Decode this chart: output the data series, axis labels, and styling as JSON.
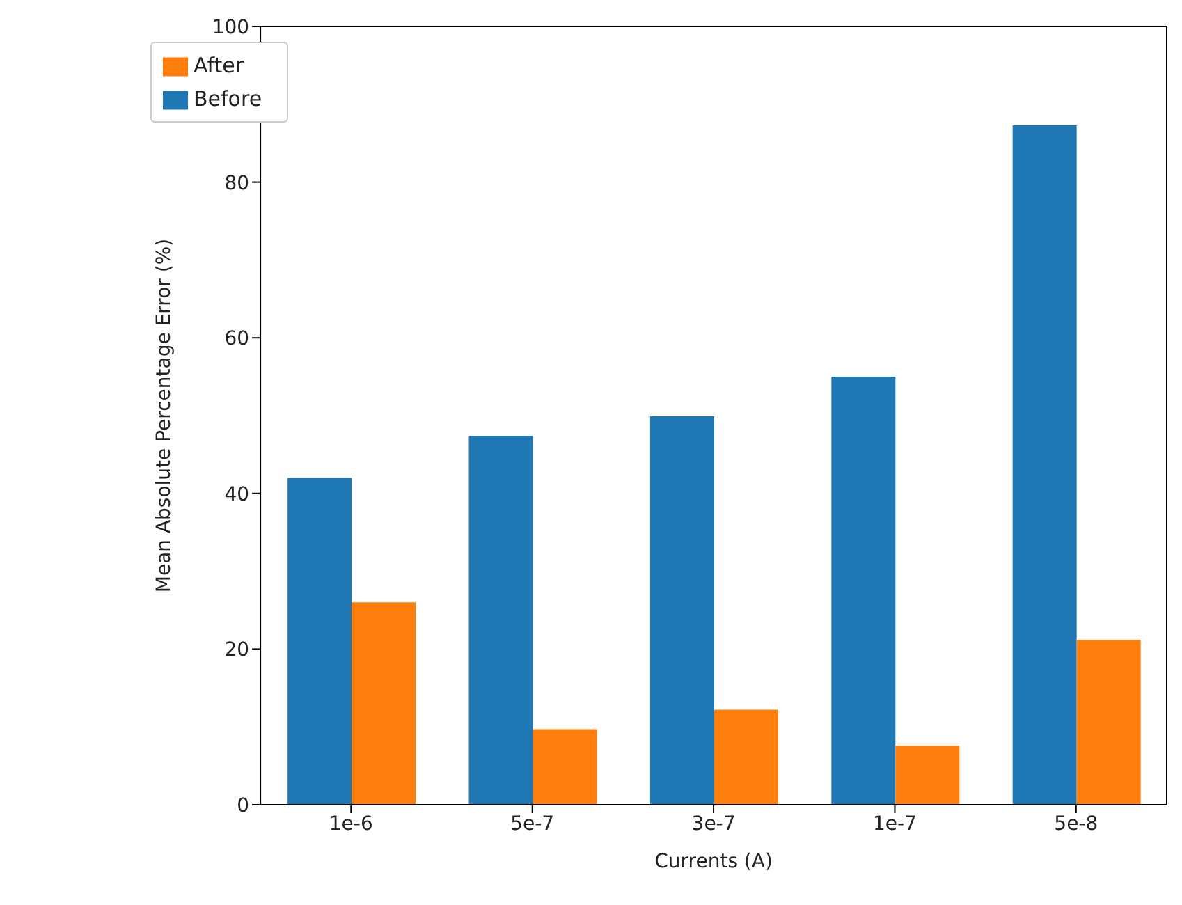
{
  "chart_data": {
    "type": "bar",
    "xlabel": "Currents (A)",
    "ylabel": "Mean Absolute Percentage Error (%)",
    "categories": [
      "1e-6",
      "5e-7",
      "3e-7",
      "1e-7",
      "5e-8"
    ],
    "series": [
      {
        "name": "Before",
        "color": "#1f77b4",
        "values": [
          42,
          47.4,
          49.9,
          55,
          87.3
        ]
      },
      {
        "name": "After",
        "color": "#ff7f0e",
        "values": [
          26,
          9.7,
          12.2,
          7.6,
          21.2
        ]
      }
    ],
    "ylim": [
      0,
      100
    ],
    "yticks": [
      0,
      20,
      40,
      60,
      80,
      100
    ],
    "grid": false,
    "legend": "top left"
  }
}
